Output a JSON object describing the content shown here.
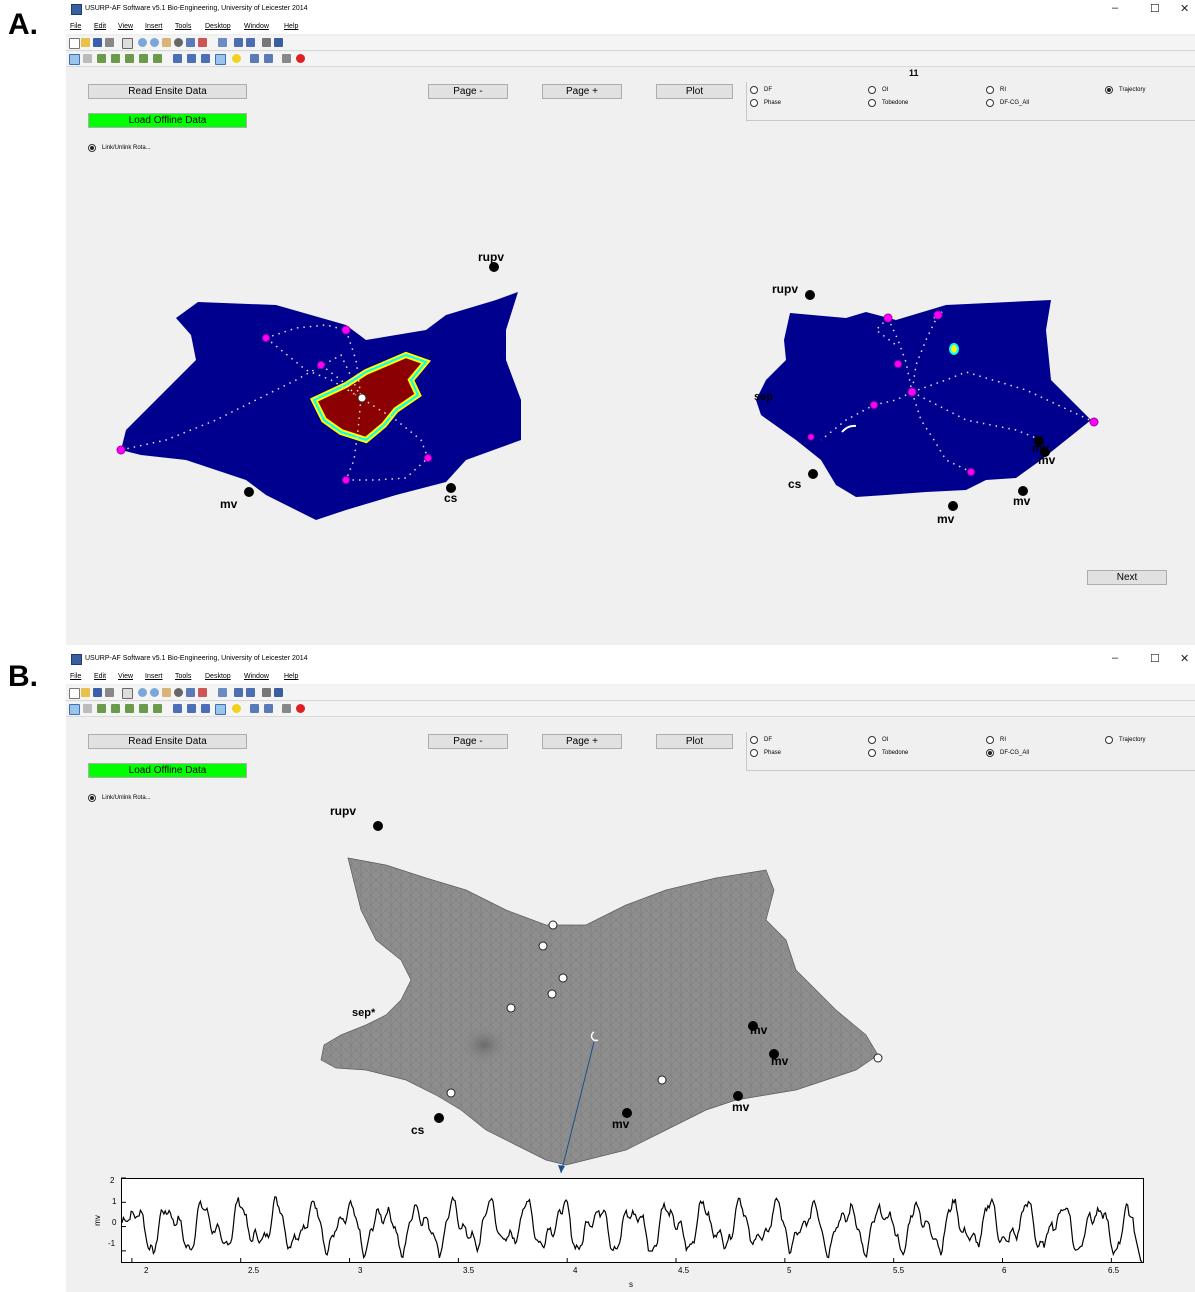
{
  "panels": [
    {
      "letter": "A.",
      "window_title": "USURP-AF Software v5.1    Bio-Engineering, University of Leicester  2014",
      "menu": [
        "File",
        "Edit",
        "View",
        "Insert",
        "Tools",
        "Desktop",
        "Window",
        "Help"
      ],
      "buttons": {
        "read": "Read Ensite Data",
        "load": "Load Offline Data",
        "page_minus": "Page -",
        "page_plus": "Page +",
        "plot": "Plot",
        "next": "Next"
      },
      "link_radio": "Link/Unlink Rota...",
      "frame_number": "11",
      "radios": [
        {
          "label": "DF",
          "selected": false
        },
        {
          "label": "OI",
          "selected": false
        },
        {
          "label": "RI",
          "selected": false
        },
        {
          "label": "Trajectory",
          "selected": true
        },
        {
          "label": "Phase",
          "selected": false
        },
        {
          "label": "Tobedone",
          "selected": false
        },
        {
          "label": "DF-CG_All",
          "selected": false
        }
      ],
      "landmarks_left": {
        "rupv": "rupv",
        "mv": "mv",
        "cs": "cs"
      },
      "landmarks_right": {
        "rupv": "rupv",
        "sep": "sep",
        "mv1": "mv",
        "mv2": "mv",
        "mv3": "mv",
        "mv4": "mv",
        "cs": "cs"
      }
    },
    {
      "letter": "B.",
      "window_title": "USURP-AF Software v5.1    Bio-Engineering, University of Leicester  2014",
      "menu": [
        "File",
        "Edit",
        "View",
        "Insert",
        "Tools",
        "Desktop",
        "Window",
        "Help"
      ],
      "buttons": {
        "read": "Read Ensite Data",
        "load": "Load Offline Data",
        "page_minus": "Page -",
        "page_plus": "Page +",
        "plot": "Plot"
      },
      "link_radio": "Link/Unlink Rota...",
      "radios": [
        {
          "label": "DF",
          "selected": false
        },
        {
          "label": "OI",
          "selected": false
        },
        {
          "label": "RI",
          "selected": false
        },
        {
          "label": "Trajectory",
          "selected": false
        },
        {
          "label": "Phase",
          "selected": false
        },
        {
          "label": "Tobedone",
          "selected": false
        },
        {
          "label": "DF-CG_All",
          "selected": true
        }
      ],
      "landmarks": {
        "rupv": "rupv",
        "sep": "sep*",
        "cs": "cs",
        "mv1": "mv",
        "mv2": "mv",
        "mv3": "mv",
        "mv4": "mv"
      },
      "signal_axes": {
        "xlabel": "s",
        "ylabel": "mv",
        "xticks": [
          "2",
          "2.5",
          "3",
          "3.5",
          "4",
          "4.5",
          "5",
          "5.5",
          "6",
          "6.5"
        ],
        "yticks": [
          "2",
          "1",
          "0",
          "-1"
        ]
      }
    }
  ],
  "colors": {
    "map_blue": "#00008f",
    "hot": "#8b0000",
    "rotor": "#ff00ff",
    "mesh_gray": "#8c8c8c",
    "button_green": "#00ff00"
  },
  "chart_data": {
    "type": "line",
    "xlabel": "s",
    "ylabel": "mv",
    "xlim": [
      1.95,
      6.65
    ],
    "ylim": [
      -1.5,
      2
    ]
  }
}
